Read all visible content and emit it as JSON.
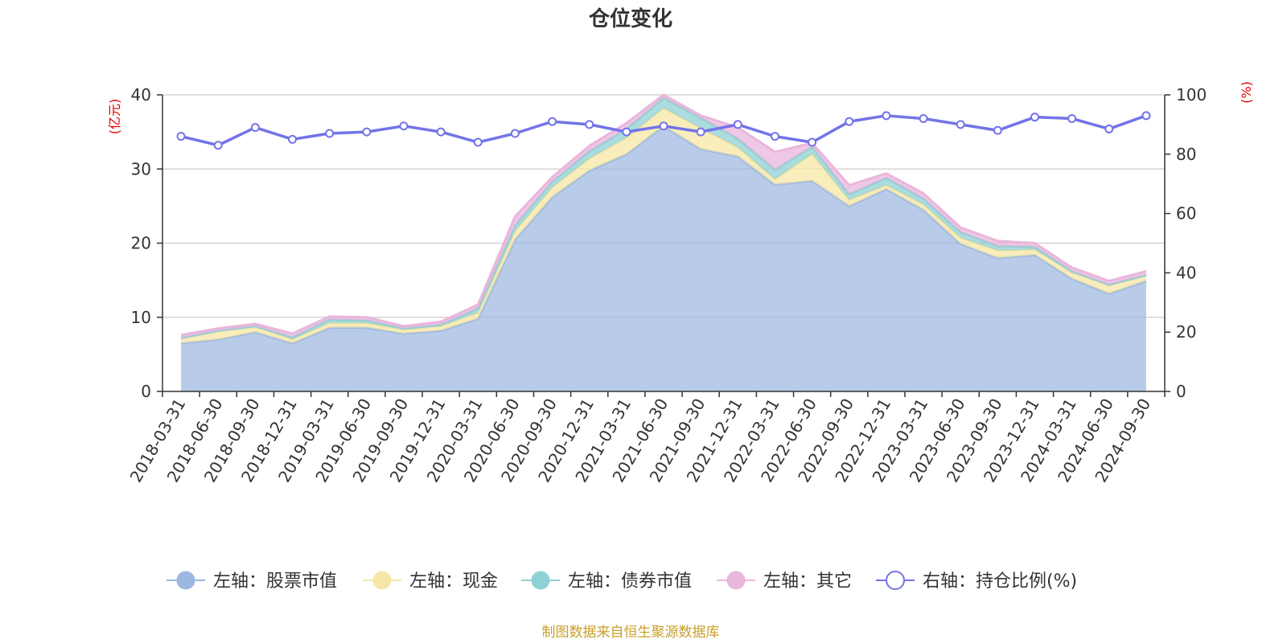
{
  "chart_data": {
    "type": "area",
    "title": "仓位变化",
    "left_axis": {
      "unit": "(亿元)",
      "ylim": [
        0,
        40
      ],
      "ticks": [
        0,
        10,
        20,
        30,
        40
      ]
    },
    "right_axis": {
      "unit": "(%)",
      "ylim": [
        0,
        100
      ],
      "ticks": [
        0,
        20,
        40,
        60,
        80,
        100
      ]
    },
    "categories": [
      "2018-03-31",
      "2018-06-30",
      "2018-09-30",
      "2018-12-31",
      "2019-03-31",
      "2019-06-30",
      "2019-09-30",
      "2019-12-31",
      "2020-03-31",
      "2020-06-30",
      "2020-09-30",
      "2020-12-31",
      "2021-03-31",
      "2021-06-30",
      "2021-09-30",
      "2021-12-31",
      "2022-03-31",
      "2022-06-30",
      "2022-09-30",
      "2022-12-31",
      "2023-03-31",
      "2023-06-30",
      "2023-09-30",
      "2023-12-31",
      "2024-03-31",
      "2024-06-30",
      "2024-09-30"
    ],
    "stacked_series": [
      {
        "name": "左轴：股票市值",
        "color": "#9db8e0",
        "values": [
          6.5,
          7.0,
          8.0,
          6.5,
          8.6,
          8.6,
          7.8,
          8.2,
          9.8,
          20.5,
          26.2,
          29.8,
          32.0,
          35.8,
          32.7,
          31.7,
          27.9,
          28.4,
          25.0,
          27.3,
          24.5,
          19.9,
          18.0,
          18.4,
          15.2,
          13.2,
          14.9
        ]
      },
      {
        "name": "左轴：现金",
        "color": "#f7e7a6",
        "values": [
          0.6,
          1.1,
          0.7,
          0.5,
          0.6,
          0.6,
          0.5,
          0.6,
          0.8,
          1.1,
          1.3,
          1.6,
          2.2,
          2.4,
          2.8,
          1.2,
          0.7,
          3.6,
          0.8,
          0.5,
          0.7,
          0.8,
          1.0,
          0.7,
          0.8,
          1.1,
          0.7
        ]
      },
      {
        "name": "左轴：债券市值",
        "color": "#8fd0d4",
        "values": [
          0.1,
          0.1,
          0.1,
          0.3,
          0.5,
          0.4,
          0.2,
          0.2,
          0.6,
          0.8,
          0.8,
          1.0,
          1.2,
          1.4,
          1.4,
          1.2,
          1.3,
          1.0,
          0.8,
          1.0,
          0.8,
          0.8,
          0.6,
          0.4,
          0.2,
          0.1,
          0.1
        ]
      },
      {
        "name": "左轴：其它",
        "color": "#e9b6dc",
        "values": [
          0.4,
          0.3,
          0.3,
          0.5,
          0.4,
          0.4,
          0.3,
          0.4,
          0.5,
          1.2,
          0.6,
          0.7,
          0.8,
          0.4,
          0.3,
          1.5,
          2.4,
          0.5,
          1.2,
          0.6,
          0.7,
          0.6,
          0.7,
          0.5,
          0.5,
          0.5,
          0.5
        ]
      }
    ],
    "line_series": {
      "name": "右轴：持仓比例(%)",
      "color": "#7373e8",
      "values": [
        86,
        83,
        89,
        85,
        87,
        87.5,
        89.5,
        87.5,
        84,
        87,
        91,
        90,
        87.5,
        89.5,
        87.5,
        90,
        86,
        84,
        91,
        93,
        92,
        90,
        88,
        92.5,
        92,
        88.5,
        93
      ]
    },
    "legend_position": "bottom",
    "grid": true
  },
  "footer": {
    "source": "制图数据来自恒生聚源数据库"
  }
}
